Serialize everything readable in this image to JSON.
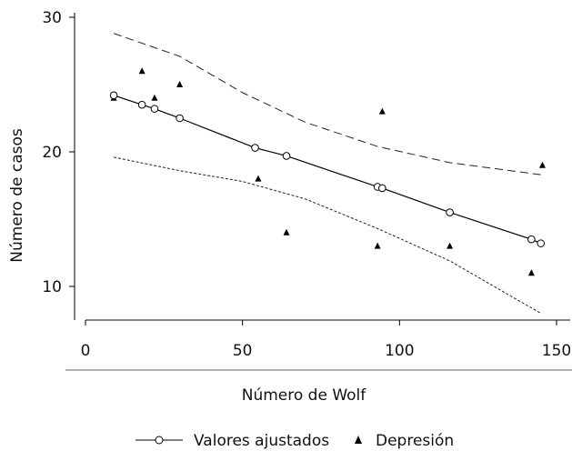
{
  "chart_data": {
    "type": "scatter",
    "xlabel": "Número de Wolf",
    "ylabel": "Número de casos",
    "xlim": [
      -3,
      152
    ],
    "ylim": [
      7,
      31
    ],
    "xticks": [
      0,
      50,
      100,
      150
    ],
    "yticks": [
      10,
      20,
      30
    ],
    "grid": false,
    "legend_position": "bottom",
    "series": [
      {
        "name": "Valores ajustados",
        "kind": "line-with-markers",
        "marker": "hollow-circle",
        "color": "#000000",
        "points": [
          {
            "x": 9,
            "y": 24.2
          },
          {
            "x": 18,
            "y": 23.5
          },
          {
            "x": 22,
            "y": 23.2
          },
          {
            "x": 30,
            "y": 22.5
          },
          {
            "x": 54,
            "y": 20.3
          },
          {
            "x": 64,
            "y": 19.7
          },
          {
            "x": 93,
            "y": 17.4
          },
          {
            "x": 94.5,
            "y": 17.3
          },
          {
            "x": 116,
            "y": 15.5
          },
          {
            "x": 142,
            "y": 13.5
          },
          {
            "x": 145,
            "y": 13.2
          }
        ]
      },
      {
        "name": "Depresión",
        "kind": "scatter",
        "marker": "filled-triangle",
        "color": "#000000",
        "points": [
          {
            "x": 9,
            "y": 24
          },
          {
            "x": 18,
            "y": 26
          },
          {
            "x": 22,
            "y": 24
          },
          {
            "x": 30,
            "y": 25
          },
          {
            "x": 55,
            "y": 18
          },
          {
            "x": 64,
            "y": 14
          },
          {
            "x": 93,
            "y": 13
          },
          {
            "x": 94.5,
            "y": 23
          },
          {
            "x": 116,
            "y": 13
          },
          {
            "x": 142,
            "y": 11
          },
          {
            "x": 145.5,
            "y": 19
          }
        ]
      }
    ],
    "confidence_band": {
      "style": "dashed",
      "upper": [
        {
          "x": 9,
          "y": 28.8
        },
        {
          "x": 30,
          "y": 27.1
        },
        {
          "x": 50,
          "y": 24.4
        },
        {
          "x": 70,
          "y": 22.2
        },
        {
          "x": 93,
          "y": 20.4
        },
        {
          "x": 116,
          "y": 19.2
        },
        {
          "x": 145,
          "y": 18.3
        }
      ],
      "lower": [
        {
          "x": 9,
          "y": 19.6
        },
        {
          "x": 30,
          "y": 18.6
        },
        {
          "x": 50,
          "y": 17.8
        },
        {
          "x": 70,
          "y": 16.5
        },
        {
          "x": 93,
          "y": 14.3
        },
        {
          "x": 116,
          "y": 11.9
        },
        {
          "x": 145,
          "y": 8.0
        }
      ]
    }
  }
}
